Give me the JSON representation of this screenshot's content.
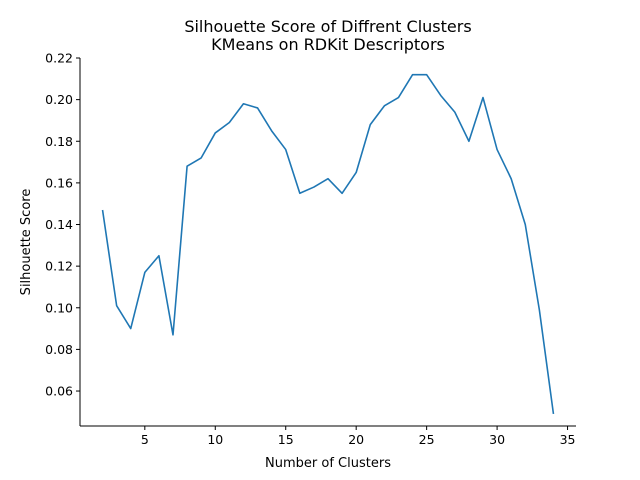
{
  "chart_data": {
    "type": "line",
    "title": "Silhouette Score of Diffrent Clusters",
    "subtitle": "KMeans on RDKit Descriptors",
    "xlabel": "Number of Clusters",
    "ylabel": "Silhouette Score",
    "xlim": [
      0.4,
      35.6
    ],
    "ylim": [
      0.0432,
      0.22
    ],
    "xticks": [
      5,
      10,
      15,
      20,
      25,
      30,
      35
    ],
    "yticks": [
      0.06,
      0.08,
      0.1,
      0.12,
      0.14,
      0.16,
      0.18,
      0.2,
      0.22
    ],
    "ytick_labels": [
      "0.06",
      "0.08",
      "0.10",
      "0.12",
      "0.14",
      "0.16",
      "0.18",
      "0.20",
      "0.22"
    ],
    "grid": false,
    "series": [
      {
        "color": "#1f77b4",
        "x": [
          2,
          3,
          4,
          5,
          6,
          7,
          8,
          9,
          10,
          11,
          12,
          13,
          14,
          15,
          16,
          17,
          18,
          19,
          20,
          21,
          22,
          23,
          24,
          25,
          26,
          27,
          28,
          29,
          30,
          31,
          32,
          33,
          34
        ],
        "y": [
          0.147,
          0.101,
          0.09,
          0.117,
          0.125,
          0.087,
          0.168,
          0.172,
          0.184,
          0.189,
          0.198,
          0.196,
          0.185,
          0.176,
          0.155,
          0.158,
          0.162,
          0.155,
          0.165,
          0.188,
          0.197,
          0.201,
          0.212,
          0.212,
          0.202,
          0.194,
          0.18,
          0.201,
          0.176,
          0.162,
          0.14,
          0.099,
          0.049
        ]
      }
    ]
  }
}
